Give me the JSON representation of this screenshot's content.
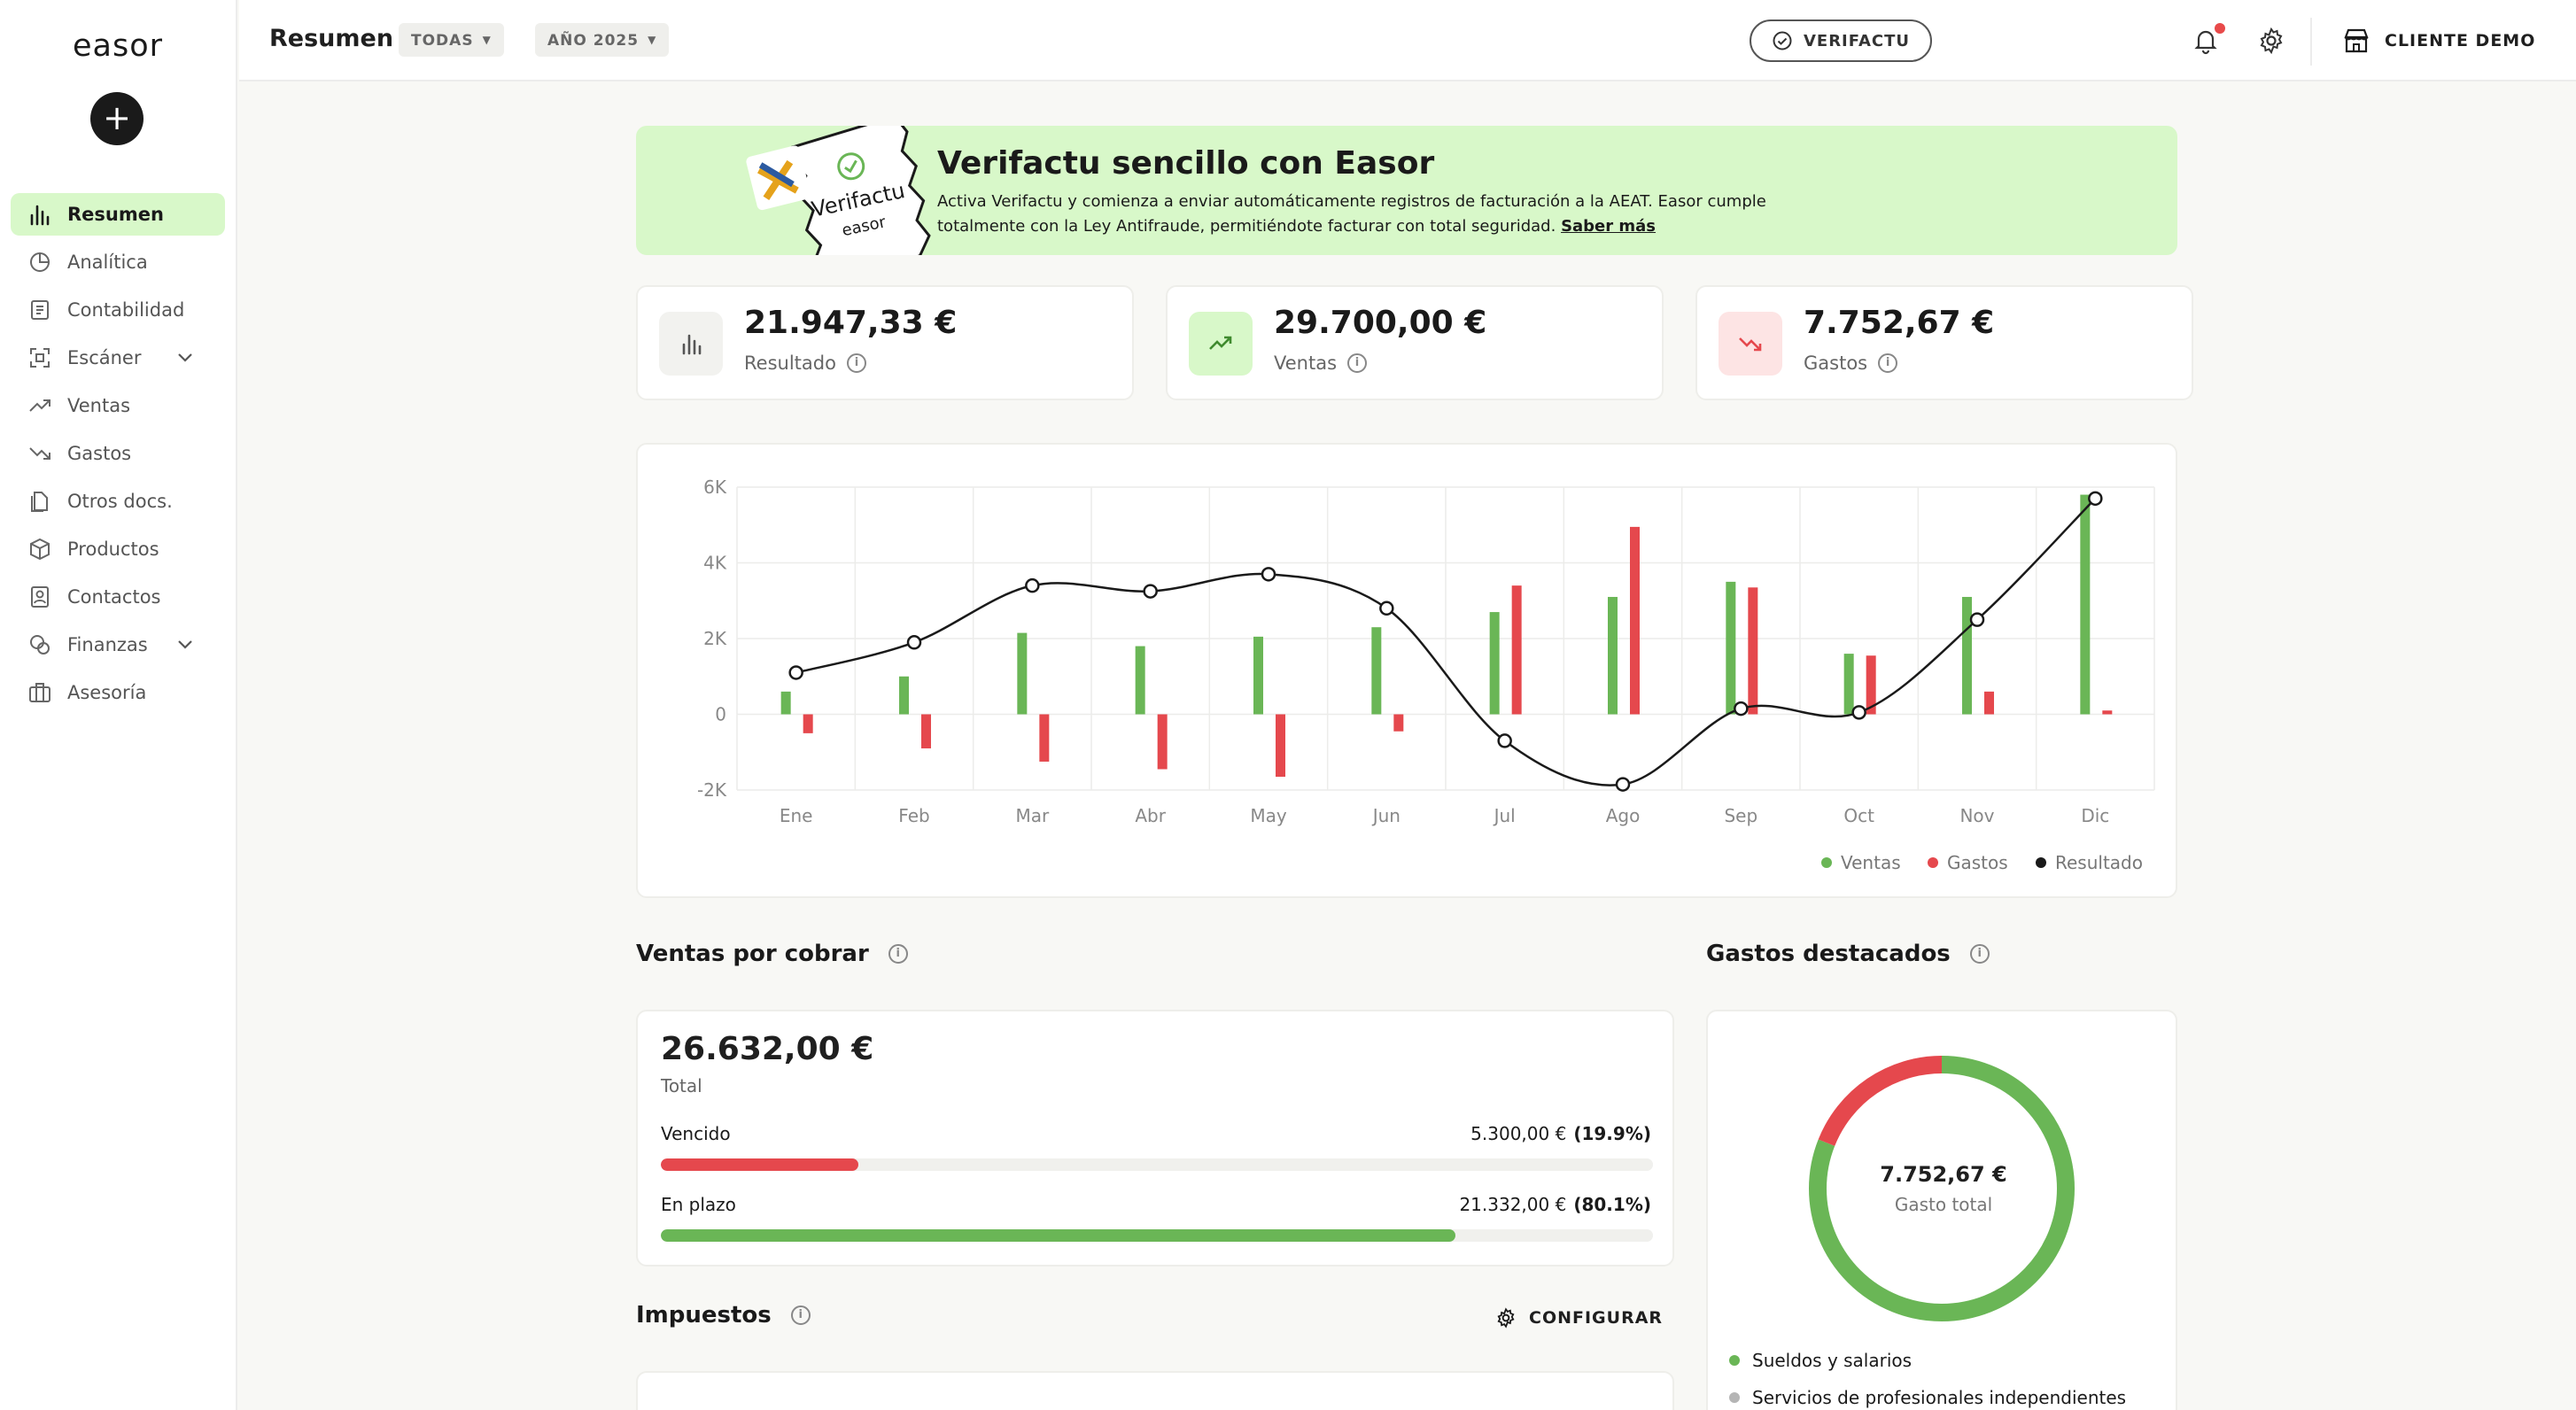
{
  "app": {
    "logo": "easor"
  },
  "sidebar": {
    "add_label": "+",
    "items": [
      {
        "label": "Resumen",
        "icon": "bar-chart-icon",
        "active": true
      },
      {
        "label": "Analítica",
        "icon": "pie-chart-icon"
      },
      {
        "label": "Contabilidad",
        "icon": "ledger-icon"
      },
      {
        "label": "Escáner",
        "icon": "scan-icon",
        "expandable": true
      },
      {
        "label": "Ventas",
        "icon": "trend-up-icon"
      },
      {
        "label": "Gastos",
        "icon": "trend-down-icon"
      },
      {
        "label": "Otros docs.",
        "icon": "documents-icon"
      },
      {
        "label": "Productos",
        "icon": "box-icon"
      },
      {
        "label": "Contactos",
        "icon": "contact-icon"
      },
      {
        "label": "Finanzas",
        "icon": "finance-icon",
        "expandable": true
      },
      {
        "label": "Asesoría",
        "icon": "briefcase-icon"
      }
    ]
  },
  "header": {
    "title": "Resumen",
    "filter_scope": "TODAS",
    "filter_year": "AÑO 2025",
    "verifactu_button": "VERIFACTU",
    "client_name": "CLIENTE DEMO"
  },
  "banner": {
    "title": "Verifactu sencillo con Easor",
    "text": "Activa Verifactu y comienza a enviar automáticamente registros de facturación a la AEAT. Easor cumple totalmente con la Ley Antifraude, permitiéndote facturar con total seguridad.",
    "link": "Saber más",
    "seal_line1": "Verifactu",
    "seal_line2": "easor"
  },
  "kpis": [
    {
      "value": "21.947,33 €",
      "label": "Resultado",
      "icon": "bar-chart-icon"
    },
    {
      "value": "29.700,00 €",
      "label": "Ventas",
      "icon": "trend-up-icon"
    },
    {
      "value": "7.752,67 €",
      "label": "Gastos",
      "icon": "trend-down-icon"
    }
  ],
  "colors": {
    "ventas": "#6ab656",
    "gastos": "#e5484d",
    "resultado": "#1a1a1a",
    "accent": "#d8f8c9"
  },
  "chart_data": {
    "type": "bar",
    "categories": [
      "Ene",
      "Feb",
      "Mar",
      "Abr",
      "May",
      "Jun",
      "Jul",
      "Ago",
      "Sep",
      "Oct",
      "Nov",
      "Dic"
    ],
    "y_ticks": [
      "6K",
      "4K",
      "2K",
      "0",
      "-2K"
    ],
    "ylim": [
      -2000,
      6000
    ],
    "series": [
      {
        "name": "Ventas",
        "type": "bar",
        "values": [
          600,
          1000,
          2150,
          1800,
          2050,
          2300,
          2700,
          3100,
          3500,
          1600,
          3100,
          5800
        ]
      },
      {
        "name": "Gastos",
        "type": "bar",
        "values": [
          -500,
          -900,
          -1250,
          -1450,
          -1650,
          -450,
          3400,
          4950,
          3350,
          1550,
          600,
          100
        ]
      },
      {
        "name": "Resultado",
        "type": "line",
        "values": [
          1100,
          1900,
          3400,
          3250,
          3700,
          2800,
          -700,
          -1850,
          150,
          50,
          2500,
          5700
        ]
      }
    ],
    "legend_position": "bottom-right",
    "grid": true
  },
  "ventas_por_cobrar": {
    "title": "Ventas por cobrar",
    "total": "26.632,00 €",
    "total_label": "Total",
    "rows": [
      {
        "label": "Vencido",
        "amount": "5.300,00 €",
        "pct": "(19.9%)",
        "fraction": 0.199
      },
      {
        "label": "En plazo",
        "amount": "21.332,00 €",
        "pct": "(80.1%)",
        "fraction": 0.801
      }
    ]
  },
  "impuestos": {
    "title": "Impuestos",
    "config_label": "CONFIGURAR"
  },
  "gastos_destacados": {
    "title": "Gastos destacados",
    "total": "7.752,67 €",
    "total_label": "Gasto total",
    "segments": [
      {
        "label": "Sueldos y salarios",
        "fraction": 0.81,
        "color": "#6ab656"
      },
      {
        "label": "Servicios de profesionales independientes",
        "fraction": 0.19,
        "color": "#e5484d"
      }
    ],
    "legend_colors": [
      "#6ab656",
      "#b5b5b5"
    ]
  }
}
